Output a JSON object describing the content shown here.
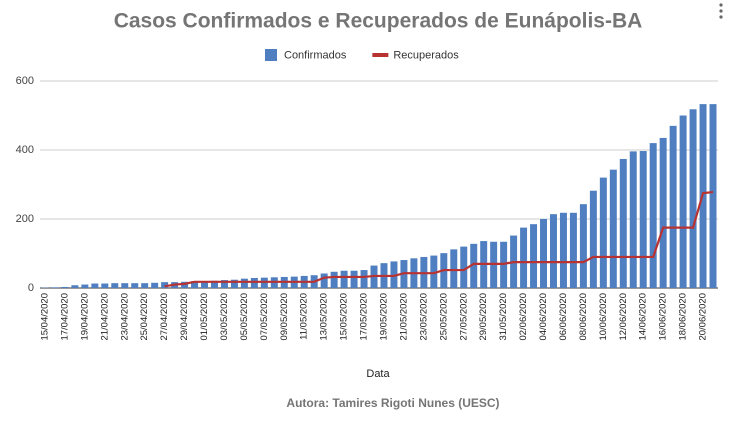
{
  "chart_data": {
    "type": "bar",
    "title": "Casos Confirmados e Recuperados de Eunápolis-BA",
    "x_label": "Data",
    "caption": "Autora: Tamires Rigoti Nunes (UESC)",
    "legend_position": "top",
    "grid": true,
    "categories": [
      "15/04/2020",
      null,
      "17/04/2020",
      null,
      "19/04/2020",
      null,
      "21/04/2020",
      null,
      "23/04/2020",
      null,
      "25/04/2020",
      null,
      "27/04/2020",
      null,
      "29/04/2020",
      null,
      "01/05/2020",
      null,
      "03/05/2020",
      null,
      "05/05/2020",
      null,
      "07/05/2020",
      null,
      "09/05/2020",
      null,
      "11/05/2020",
      null,
      "13/05/2020",
      null,
      "15/05/2020",
      null,
      "17/05/2020",
      null,
      "19/05/2020",
      null,
      "21/05/2020",
      null,
      "23/05/2020",
      null,
      "25/05/2020",
      null,
      "27/05/2020",
      null,
      "29/05/2020",
      null,
      "31/05/2020",
      null,
      "02/06/2020",
      null,
      "04/06/2020",
      null,
      "06/06/2020",
      null,
      "08/06/2020",
      null,
      "10/06/2020",
      null,
      "12/06/2020",
      null,
      "14/06/2020",
      null,
      "16/06/2020",
      null,
      "18/06/2020",
      null,
      "20/06/2020",
      null
    ],
    "series": [
      {
        "name": "Confirmados",
        "type": "bar",
        "color": "#4f7fc0",
        "values": [
          1,
          2,
          3,
          8,
          10,
          13,
          13,
          14,
          14,
          14,
          14,
          15,
          17,
          17,
          18,
          20,
          20,
          21,
          23,
          24,
          27,
          29,
          30,
          31,
          32,
          33,
          35,
          37,
          42,
          47,
          50,
          50,
          52,
          65,
          72,
          77,
          81,
          86,
          90,
          94,
          101,
          112,
          120,
          128,
          136,
          134,
          134,
          152,
          175,
          185,
          200,
          214,
          218,
          218,
          243,
          282,
          320,
          343,
          374,
          396,
          397,
          420,
          435,
          470,
          500,
          518,
          533,
          533
        ]
      },
      {
        "name": "Recuperados",
        "type": "line",
        "color": "#b83232",
        "values": [
          null,
          null,
          null,
          null,
          null,
          null,
          null,
          null,
          null,
          null,
          null,
          null,
          5,
          10,
          12,
          18,
          18,
          18,
          18,
          18,
          18,
          18,
          18,
          18,
          18,
          18,
          18,
          18,
          30,
          32,
          32,
          32,
          32,
          35,
          35,
          35,
          43,
          43,
          43,
          43,
          52,
          52,
          52,
          70,
          70,
          70,
          70,
          75,
          75,
          75,
          75,
          75,
          75,
          75,
          75,
          90,
          90,
          90,
          90,
          90,
          90,
          90,
          175,
          175,
          175,
          175,
          275,
          278
        ]
      }
    ],
    "ylim": [
      0,
      600
    ],
    "yticks": [
      0,
      200,
      400,
      600
    ]
  }
}
